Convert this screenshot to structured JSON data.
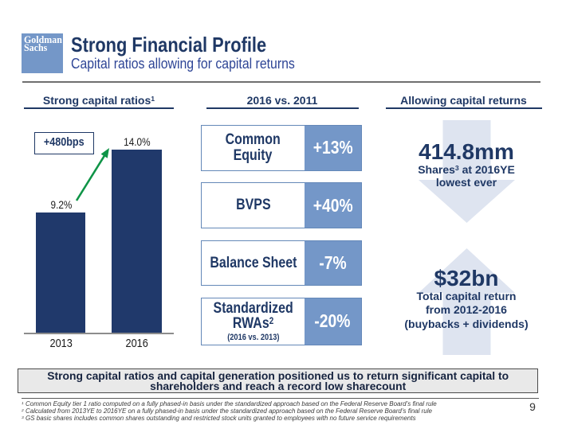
{
  "slide": {
    "logo_line1": "Goldman",
    "logo_line2": "Sachs",
    "title": "Strong Financial Profile",
    "subtitle": "Capital ratios allowing for capital returns",
    "page_number": "9"
  },
  "columns": {
    "left_header": "Strong capital ratios",
    "left_header_sup": "1",
    "middle_header": "2016 vs. 2011",
    "right_header": "Allowing capital returns"
  },
  "chart_data": {
    "type": "bar",
    "title": "Strong capital ratios",
    "categories": [
      "2013",
      "2016"
    ],
    "values": [
      9.2,
      14.0
    ],
    "value_labels": [
      "9.2%",
      "14.0%"
    ],
    "ylim": [
      0,
      14.0
    ],
    "annotation": "+480bps",
    "bar_color": "#20396b",
    "grid": false,
    "legend": false
  },
  "comparison_rows": [
    {
      "label_lines": [
        "Common",
        "Equity"
      ],
      "label_sup": "",
      "note": "",
      "value": "+13%"
    },
    {
      "label_lines": [
        "BVPS"
      ],
      "label_sup": "",
      "note": "",
      "value": "+40%"
    },
    {
      "label_lines": [
        "Balance Sheet"
      ],
      "label_sup": "",
      "note": "",
      "value": "-7%"
    },
    {
      "label_lines": [
        "Standardized",
        "RWAs"
      ],
      "label_sup": "2",
      "note": "(2016 vs. 2013)",
      "value": "-20%"
    }
  ],
  "capital_returns": {
    "shares_headline": "414.8mm",
    "shares_line1_pre": "Shares",
    "shares_line1_sup": "3",
    "shares_line1_post": " at 2016YE",
    "shares_line2": "lowest ever",
    "return_headline": "$32bn",
    "return_lines": [
      "Total capital return",
      "from 2012-2016",
      "(buybacks + dividends)"
    ]
  },
  "banner": {
    "line1": "Strong capital ratios and capital generation positioned us to return significant capital to",
    "line2": "shareholders and reach a record low sharecount"
  },
  "footnotes": [
    {
      "sup": "1",
      "text": " Common Equity tier 1 ratio computed on a fully phased-in basis under the standardized approach based on the Federal Reserve Board’s final rule"
    },
    {
      "sup": "2",
      "text": " Calculated from 2013YE to 2016YE on a fully phased-in basis under the standardized approach based on the Federal Reserve Board’s final rule"
    },
    {
      "sup": "3",
      "text": " GS basic shares includes common shares outstanding and restricted stock units granted to employees with no future service requirements"
    }
  ],
  "colors": {
    "navy_text": "#1f3865",
    "bar_navy": "#20396b",
    "steel_blue": "#7497c8",
    "pale_arrow": "#dee4f0",
    "green_arrow": "#0f9447",
    "banner_bg": "#e9e9e9"
  }
}
